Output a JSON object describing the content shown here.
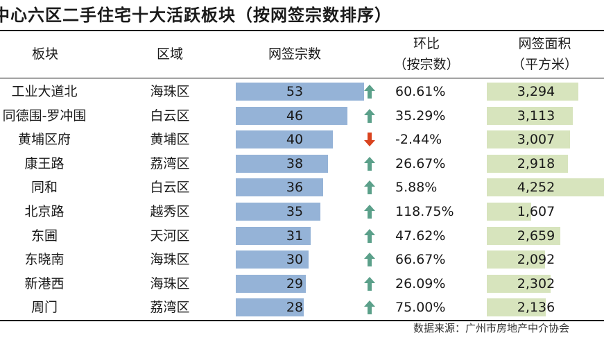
{
  "title": "中心六区二手住宅十大活跃板块（按网签宗数排序）",
  "headers": {
    "block": "板块",
    "district": "区域",
    "count": "网签宗数",
    "ratio": "环比\n（按宗数）",
    "area": "网签面积\n（平方米）"
  },
  "source": "数据来源：广州市房地产中介协会",
  "colors": {
    "count_bar": "#95b3d7",
    "area_bar": "#d7e4bd",
    "up_arrow": "#5ba08a",
    "down_arrow": "#d9431e"
  },
  "chart_data": {
    "type": "table",
    "columns": [
      "板块",
      "区域",
      "网签宗数",
      "环比（按宗数）",
      "网签面积（平方米）"
    ],
    "rows": [
      {
        "block": "工业大道北",
        "district": "海珠区",
        "count": 53,
        "ratio": "60.61%",
        "trend": "up",
        "area": "3,294",
        "area_value": 3294
      },
      {
        "block": "同德围-罗冲围",
        "district": "白云区",
        "count": 46,
        "ratio": "35.29%",
        "trend": "up",
        "area": "3,113",
        "area_value": 3113
      },
      {
        "block": "黄埔区府",
        "district": "黄埔区",
        "count": 40,
        "ratio": "-2.44%",
        "trend": "down",
        "area": "3,007",
        "area_value": 3007
      },
      {
        "block": "康王路",
        "district": "荔湾区",
        "count": 38,
        "ratio": "26.67%",
        "trend": "up",
        "area": "2,918",
        "area_value": 2918
      },
      {
        "block": "同和",
        "district": "白云区",
        "count": 36,
        "ratio": "5.88%",
        "trend": "up",
        "area": "4,252",
        "area_value": 4252
      },
      {
        "block": "北京路",
        "district": "越秀区",
        "count": 35,
        "ratio": "118.75%",
        "trend": "up",
        "area": "1,607",
        "area_value": 1607
      },
      {
        "block": "东圃",
        "district": "天河区",
        "count": 31,
        "ratio": "47.62%",
        "trend": "up",
        "area": "2,659",
        "area_value": 2659
      },
      {
        "block": "东晓南",
        "district": "海珠区",
        "count": 30,
        "ratio": "66.67%",
        "trend": "up",
        "area": "2,092",
        "area_value": 2092
      },
      {
        "block": "新港西",
        "district": "海珠区",
        "count": 29,
        "ratio": "26.09%",
        "trend": "up",
        "area": "2,302",
        "area_value": 2302
      },
      {
        "block": "周门",
        "district": "荔湾区",
        "count": 28,
        "ratio": "75.00%",
        "trend": "up",
        "area": "2,136",
        "area_value": 2136
      }
    ]
  }
}
